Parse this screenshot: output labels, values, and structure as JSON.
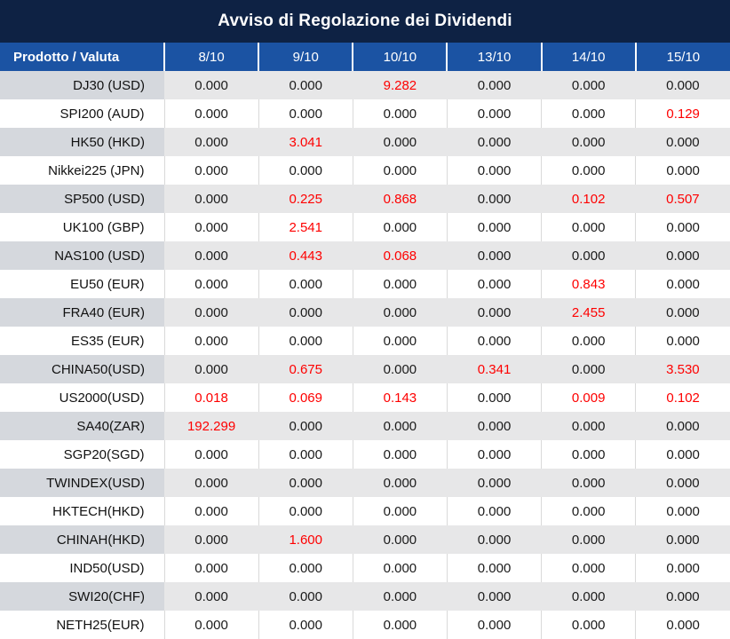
{
  "title": "Avviso di Regolazione dei Dividendi",
  "columns": [
    "Prodotto / Valuta",
    "8/10",
    "9/10",
    "10/10",
    "13/10",
    "14/10",
    "15/10"
  ],
  "rows": [
    {
      "product": "DJ30 (USD)",
      "values": [
        "0.000",
        "0.000",
        "9.282",
        "0.000",
        "0.000",
        "0.000"
      ],
      "red": [
        2
      ]
    },
    {
      "product": "SPI200 (AUD)",
      "values": [
        "0.000",
        "0.000",
        "0.000",
        "0.000",
        "0.000",
        "0.129"
      ],
      "red": [
        5
      ]
    },
    {
      "product": "HK50 (HKD)",
      "values": [
        "0.000",
        "3.041",
        "0.000",
        "0.000",
        "0.000",
        "0.000"
      ],
      "red": [
        1
      ]
    },
    {
      "product": "Nikkei225 (JPN)",
      "values": [
        "0.000",
        "0.000",
        "0.000",
        "0.000",
        "0.000",
        "0.000"
      ],
      "red": []
    },
    {
      "product": "SP500 (USD)",
      "values": [
        "0.000",
        "0.225",
        "0.868",
        "0.000",
        "0.102",
        "0.507"
      ],
      "red": [
        1,
        2,
        4,
        5
      ]
    },
    {
      "product": "UK100 (GBP)",
      "values": [
        "0.000",
        "2.541",
        "0.000",
        "0.000",
        "0.000",
        "0.000"
      ],
      "red": [
        1
      ]
    },
    {
      "product": "NAS100 (USD)",
      "values": [
        "0.000",
        "0.443",
        "0.068",
        "0.000",
        "0.000",
        "0.000"
      ],
      "red": [
        1,
        2
      ]
    },
    {
      "product": "EU50 (EUR)",
      "values": [
        "0.000",
        "0.000",
        "0.000",
        "0.000",
        "0.843",
        "0.000"
      ],
      "red": [
        4
      ]
    },
    {
      "product": "FRA40 (EUR)",
      "values": [
        "0.000",
        "0.000",
        "0.000",
        "0.000",
        "2.455",
        "0.000"
      ],
      "red": [
        4
      ]
    },
    {
      "product": "ES35 (EUR)",
      "values": [
        "0.000",
        "0.000",
        "0.000",
        "0.000",
        "0.000",
        "0.000"
      ],
      "red": []
    },
    {
      "product": "CHINA50(USD)",
      "values": [
        "0.000",
        "0.675",
        "0.000",
        "0.341",
        "0.000",
        "3.530"
      ],
      "red": [
        1,
        3,
        5
      ]
    },
    {
      "product": "US2000(USD)",
      "values": [
        "0.018",
        "0.069",
        "0.143",
        "0.000",
        "0.009",
        "0.102"
      ],
      "red": [
        0,
        1,
        2,
        4,
        5
      ]
    },
    {
      "product": "SA40(ZAR)",
      "values": [
        "192.299",
        "0.000",
        "0.000",
        "0.000",
        "0.000",
        "0.000"
      ],
      "red": [
        0
      ]
    },
    {
      "product": "SGP20(SGD)",
      "values": [
        "0.000",
        "0.000",
        "0.000",
        "0.000",
        "0.000",
        "0.000"
      ],
      "red": []
    },
    {
      "product": "TWINDEX(USD)",
      "values": [
        "0.000",
        "0.000",
        "0.000",
        "0.000",
        "0.000",
        "0.000"
      ],
      "red": []
    },
    {
      "product": "HKTECH(HKD)",
      "values": [
        "0.000",
        "0.000",
        "0.000",
        "0.000",
        "0.000",
        "0.000"
      ],
      "red": []
    },
    {
      "product": "CHINAH(HKD)",
      "values": [
        "0.000",
        "1.600",
        "0.000",
        "0.000",
        "0.000",
        "0.000"
      ],
      "red": [
        1
      ]
    },
    {
      "product": "IND50(USD)",
      "values": [
        "0.000",
        "0.000",
        "0.000",
        "0.000",
        "0.000",
        "0.000"
      ],
      "red": []
    },
    {
      "product": "SWI20(CHF)",
      "values": [
        "0.000",
        "0.000",
        "0.000",
        "0.000",
        "0.000",
        "0.000"
      ],
      "red": []
    },
    {
      "product": "NETH25(EUR)",
      "values": [
        "0.000",
        "0.000",
        "0.000",
        "0.000",
        "0.000",
        "0.000"
      ],
      "red": []
    }
  ],
  "colors": {
    "title_bg": "#0e2244",
    "header_bg": "#1b53a3",
    "header_text": "#ffffff",
    "alt_row_bg": "#e7e7e8",
    "alt_row_product_bg": "#d5d8dd",
    "white_row_border": "#d9d9d9",
    "value_text": "#1a1a1a",
    "highlight_red": "#fe0000"
  }
}
